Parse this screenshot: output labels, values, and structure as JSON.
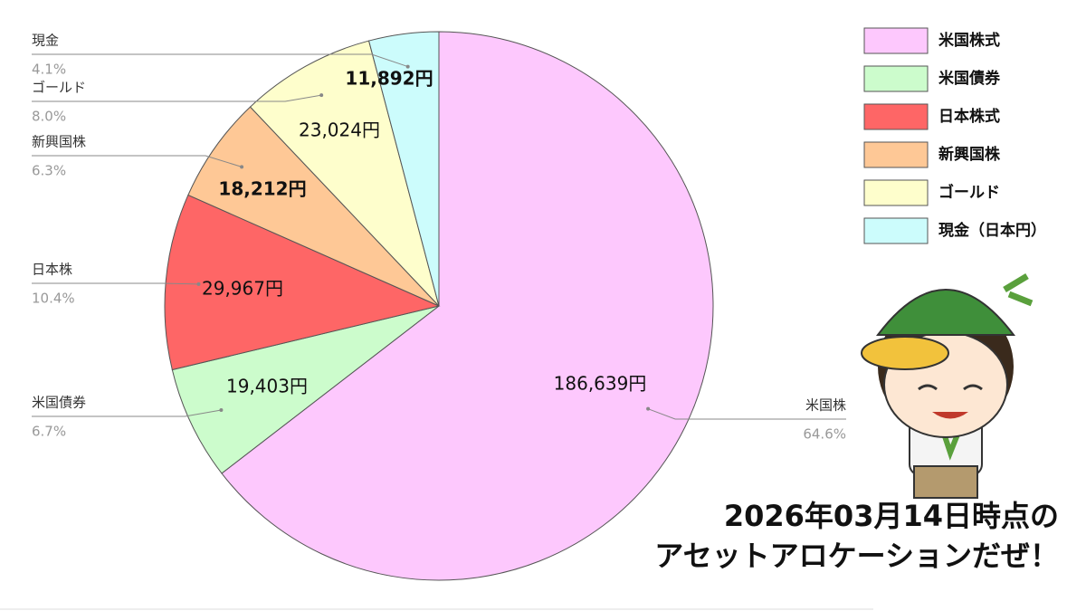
{
  "chart_data": {
    "type": "pie",
    "categories": [
      "米国株式",
      "米国債券",
      "日本株式",
      "新興国株",
      "ゴールド",
      "現金（日本円）"
    ],
    "values": [
      186639,
      19403,
      29967,
      18212,
      23024,
      11892
    ],
    "value_labels": [
      "186,639円",
      "19,403円",
      "29,967円",
      "18,212円",
      "23,024円",
      "11,892円"
    ],
    "colors": [
      "#fdc8fd",
      "#ccfccc",
      "#fe6666",
      "#fec896",
      "#fefecc",
      "#ccfcfc"
    ],
    "slice_labels": [
      "米国株",
      "米国債券",
      "日本株",
      "新興国株",
      "ゴールド",
      "現金"
    ],
    "percent_labels": [
      "64.6%",
      "6.7%",
      "10.4%",
      "6.3%",
      "8.0%",
      "4.1%"
    ],
    "legend": "top-right"
  },
  "caption": [
    "2026年03月14日時点の",
    "アセットアロケーションだぜ！"
  ]
}
